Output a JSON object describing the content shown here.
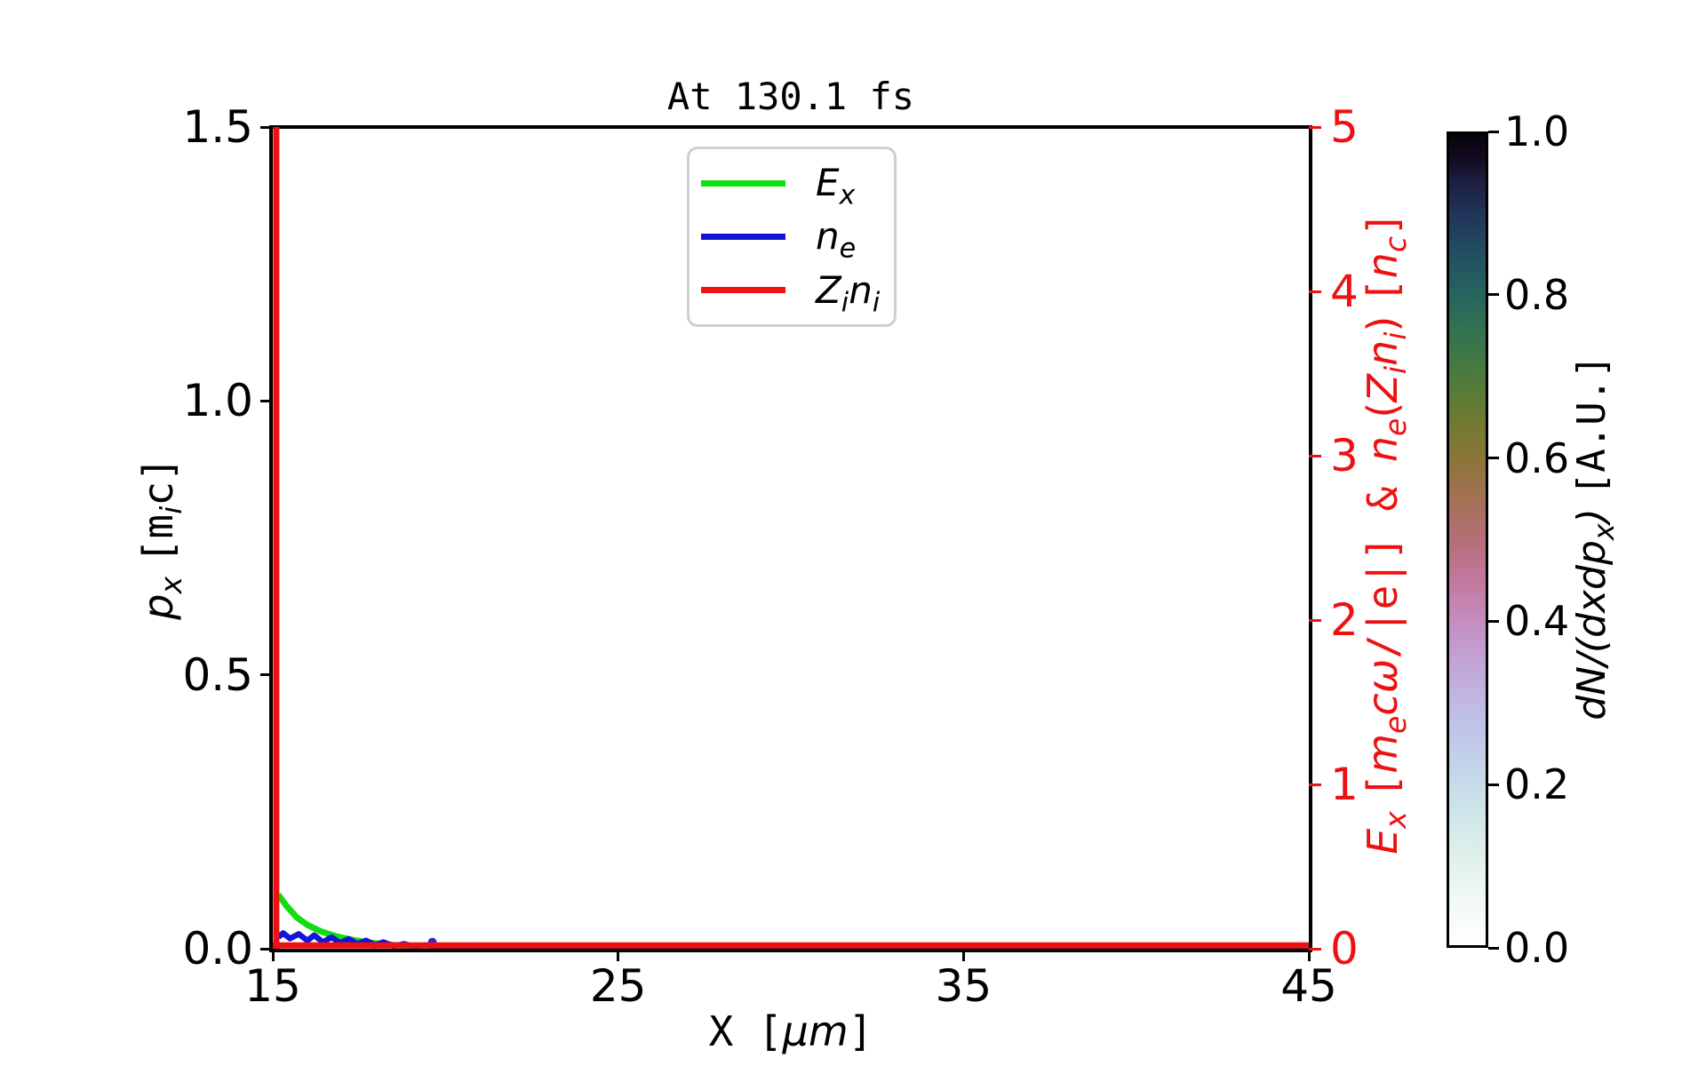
{
  "title": "At 130.1 fs",
  "legend": {
    "items": [
      {
        "label": "E_x",
        "color": "#11dd11",
        "label_parts": [
          {
            "t": "E",
            "i": true
          },
          {
            "t": "x",
            "i": true,
            "sub": true
          }
        ]
      },
      {
        "label": "n_e",
        "color": "#1414d6",
        "label_parts": [
          {
            "t": "n",
            "i": true
          },
          {
            "t": "e",
            "i": true,
            "sub": true
          }
        ]
      },
      {
        "label": "Z_in_i",
        "color": "#ee1111",
        "label_parts": [
          {
            "t": "Z",
            "i": true
          },
          {
            "t": "i",
            "i": true,
            "sub": true
          },
          {
            "t": "n",
            "i": true
          },
          {
            "t": "i",
            "i": true,
            "sub": true
          }
        ]
      }
    ]
  },
  "labels": {
    "xlabel_parts": [
      {
        "t": "X [",
        "mono": true
      },
      {
        "t": "μm",
        "i": true
      },
      {
        "t": "]",
        "mono": true
      }
    ],
    "ylabel_left_parts": [
      {
        "t": "p",
        "i": true
      },
      {
        "t": "x",
        "i": true,
        "sub": true
      },
      {
        "t": " "
      },
      {
        "t": "[m",
        "mono": true
      },
      {
        "t": "i",
        "i": true,
        "sub": true
      },
      {
        "t": "c]",
        "mono": true
      }
    ],
    "ylabel_right_parts": [
      {
        "t": "E",
        "i": true
      },
      {
        "t": "x",
        "i": true,
        "sub": true
      },
      {
        "t": " "
      },
      {
        "t": "[",
        "mono": true
      },
      {
        "t": "m",
        "i": true
      },
      {
        "t": "e",
        "i": true,
        "sub": true
      },
      {
        "t": "c",
        "i": true
      },
      {
        "t": "ω",
        "i": true
      },
      {
        "t": "/|e|]",
        "mono": true
      },
      {
        "t": " & ",
        "mono": true
      },
      {
        "t": "n",
        "i": true
      },
      {
        "t": "e",
        "i": true,
        "sub": true
      },
      {
        "t": "("
      },
      {
        "t": "Z",
        "i": true
      },
      {
        "t": "i",
        "i": true,
        "sub": true
      },
      {
        "t": "n",
        "i": true
      },
      {
        "t": "i",
        "i": true,
        "sub": true
      },
      {
        "t": ")"
      },
      {
        "t": " "
      },
      {
        "t": "[",
        "mono": true
      },
      {
        "t": "n",
        "i": true
      },
      {
        "t": "c",
        "i": true,
        "sub": true
      },
      {
        "t": "]",
        "mono": true
      }
    ],
    "colorbar_label_parts": [
      {
        "t": "dN",
        "i": true
      },
      {
        "t": "/(",
        "i": true
      },
      {
        "t": "dxdp",
        "i": true
      },
      {
        "t": "x",
        "i": true,
        "sub": true
      },
      {
        "t": ")",
        "i": true
      },
      {
        "t": " "
      },
      {
        "t": "[A.U.]",
        "mono": true
      }
    ]
  },
  "chart_data": {
    "type": "line",
    "title": "At 130.1 fs",
    "grid": false,
    "legend_position": "upper center inside",
    "x_axis": {
      "label": "X [μm]",
      "range": [
        15,
        45
      ],
      "ticks": [
        "15",
        "25",
        "35",
        "45"
      ],
      "tick_values": [
        15,
        25,
        35,
        45
      ]
    },
    "y_left": {
      "label": "p_x [m_i c]",
      "range": [
        0,
        1.5
      ],
      "ticks": [
        "0.0",
        "0.5",
        "1.0",
        "1.5"
      ],
      "tick_values": [
        0,
        0.5,
        1.0,
        1.5
      ],
      "color": "#000000"
    },
    "y_right": {
      "label": "E_x [m_e cω/|e|] & n_e(Z_i n_i) [n_c]",
      "range": [
        0,
        5
      ],
      "ticks": [
        "0",
        "1",
        "2",
        "3",
        "4",
        "5"
      ],
      "tick_values": [
        0,
        1,
        2,
        3,
        4,
        5
      ],
      "color": "#ee1111"
    },
    "series": [
      {
        "name": "E_x",
        "axis": "right",
        "color": "#11dd11",
        "width": 7,
        "paths": [
          [
            [
              15.16,
              0.33
            ],
            [
              15.4,
              0.26
            ],
            [
              15.7,
              0.19
            ],
            [
              16.0,
              0.145
            ],
            [
              16.4,
              0.105
            ],
            [
              16.8,
              0.078
            ],
            [
              17.2,
              0.058
            ],
            [
              17.6,
              0.043
            ],
            [
              18.0,
              0.032
            ],
            [
              18.5,
              0.022
            ],
            [
              19.0,
              0.015
            ],
            [
              19.6,
              0.01
            ],
            [
              20.2,
              0.006
            ],
            [
              21.0,
              0.003
            ],
            [
              22.0,
              0.0015
            ],
            [
              23.5,
              0.0005
            ],
            [
              25.0,
              0.0
            ],
            [
              45.0,
              0.0
            ]
          ]
        ]
      },
      {
        "name": "n_e",
        "axis": "right",
        "color": "#1414d6",
        "width": 6.5,
        "paths": [
          [
            [
              15.16,
              0.07
            ],
            [
              15.3,
              0.095
            ],
            [
              15.5,
              0.062
            ],
            [
              15.75,
              0.09
            ],
            [
              16.0,
              0.05
            ],
            [
              16.2,
              0.082
            ],
            [
              16.45,
              0.04
            ],
            [
              16.7,
              0.07
            ],
            [
              16.95,
              0.035
            ],
            [
              17.2,
              0.06
            ],
            [
              17.45,
              0.028
            ],
            [
              17.7,
              0.05
            ],
            [
              17.95,
              0.022
            ],
            [
              18.2,
              0.04
            ],
            [
              18.5,
              0.016
            ],
            [
              18.8,
              0.03
            ],
            [
              19.1,
              0.012
            ],
            [
              19.4,
              0.022
            ],
            [
              19.8,
              0.008
            ],
            [
              20.2,
              0.014
            ],
            [
              20.7,
              0.005
            ],
            [
              21.2,
              0.009
            ],
            [
              21.8,
              0.003
            ],
            [
              22.4,
              0.005
            ],
            [
              23.0,
              0.001
            ],
            [
              24.0,
              0.0
            ],
            [
              45.0,
              0.0
            ]
          ]
        ]
      },
      {
        "name": "Z_in_i",
        "axis": "right",
        "color": "#ee1111",
        "width": 7,
        "paths": [
          [
            [
              15.1,
              0.0
            ],
            [
              15.1,
              5.0
            ]
          ],
          [
            [
              15.0,
              0.02
            ],
            [
              45.0,
              0.02
            ]
          ]
        ]
      }
    ],
    "scatter": [
      {
        "x": 17.95,
        "y": 0.018,
        "color": "#cf9fc4",
        "r": 4
      },
      {
        "x": 19.62,
        "y": 0.04,
        "color": "#2a2ad2",
        "r": 5
      },
      {
        "x": 20.85,
        "y": 0.02,
        "color": "#d4b4cf",
        "r": 4
      }
    ],
    "colorbar": {
      "label": "dN/(dxdp_x) [A.U.]",
      "colormap": "cubehelix_r",
      "range": [
        0.0,
        1.0
      ],
      "ticks": [
        "0.0",
        "0.2",
        "0.4",
        "0.6",
        "0.8",
        "1.0"
      ],
      "tick_values": [
        0.0,
        0.2,
        0.4,
        0.6,
        0.8,
        1.0
      ],
      "stops": [
        {
          "v": 0.0,
          "c": "#ffffff"
        },
        {
          "v": 0.05,
          "c": "#f2faf5"
        },
        {
          "v": 0.1,
          "c": "#e2f2ea"
        },
        {
          "v": 0.16,
          "c": "#cfe6e8"
        },
        {
          "v": 0.22,
          "c": "#c3d4ea"
        },
        {
          "v": 0.28,
          "c": "#bfc0e7"
        },
        {
          "v": 0.34,
          "c": "#c2a8da"
        },
        {
          "v": 0.4,
          "c": "#c68cc0"
        },
        {
          "v": 0.45,
          "c": "#c2789c"
        },
        {
          "v": 0.5,
          "c": "#b56f78"
        },
        {
          "v": 0.55,
          "c": "#a37153"
        },
        {
          "v": 0.6,
          "c": "#8a7639"
        },
        {
          "v": 0.65,
          "c": "#6d7a31"
        },
        {
          "v": 0.7,
          "c": "#4e7a3d"
        },
        {
          "v": 0.75,
          "c": "#35744f"
        },
        {
          "v": 0.8,
          "c": "#26655e"
        },
        {
          "v": 0.85,
          "c": "#215063"
        },
        {
          "v": 0.9,
          "c": "#20355a"
        },
        {
          "v": 0.94,
          "c": "#1d1f41"
        },
        {
          "v": 0.97,
          "c": "#120b22"
        },
        {
          "v": 1.0,
          "c": "#060308"
        }
      ]
    }
  }
}
